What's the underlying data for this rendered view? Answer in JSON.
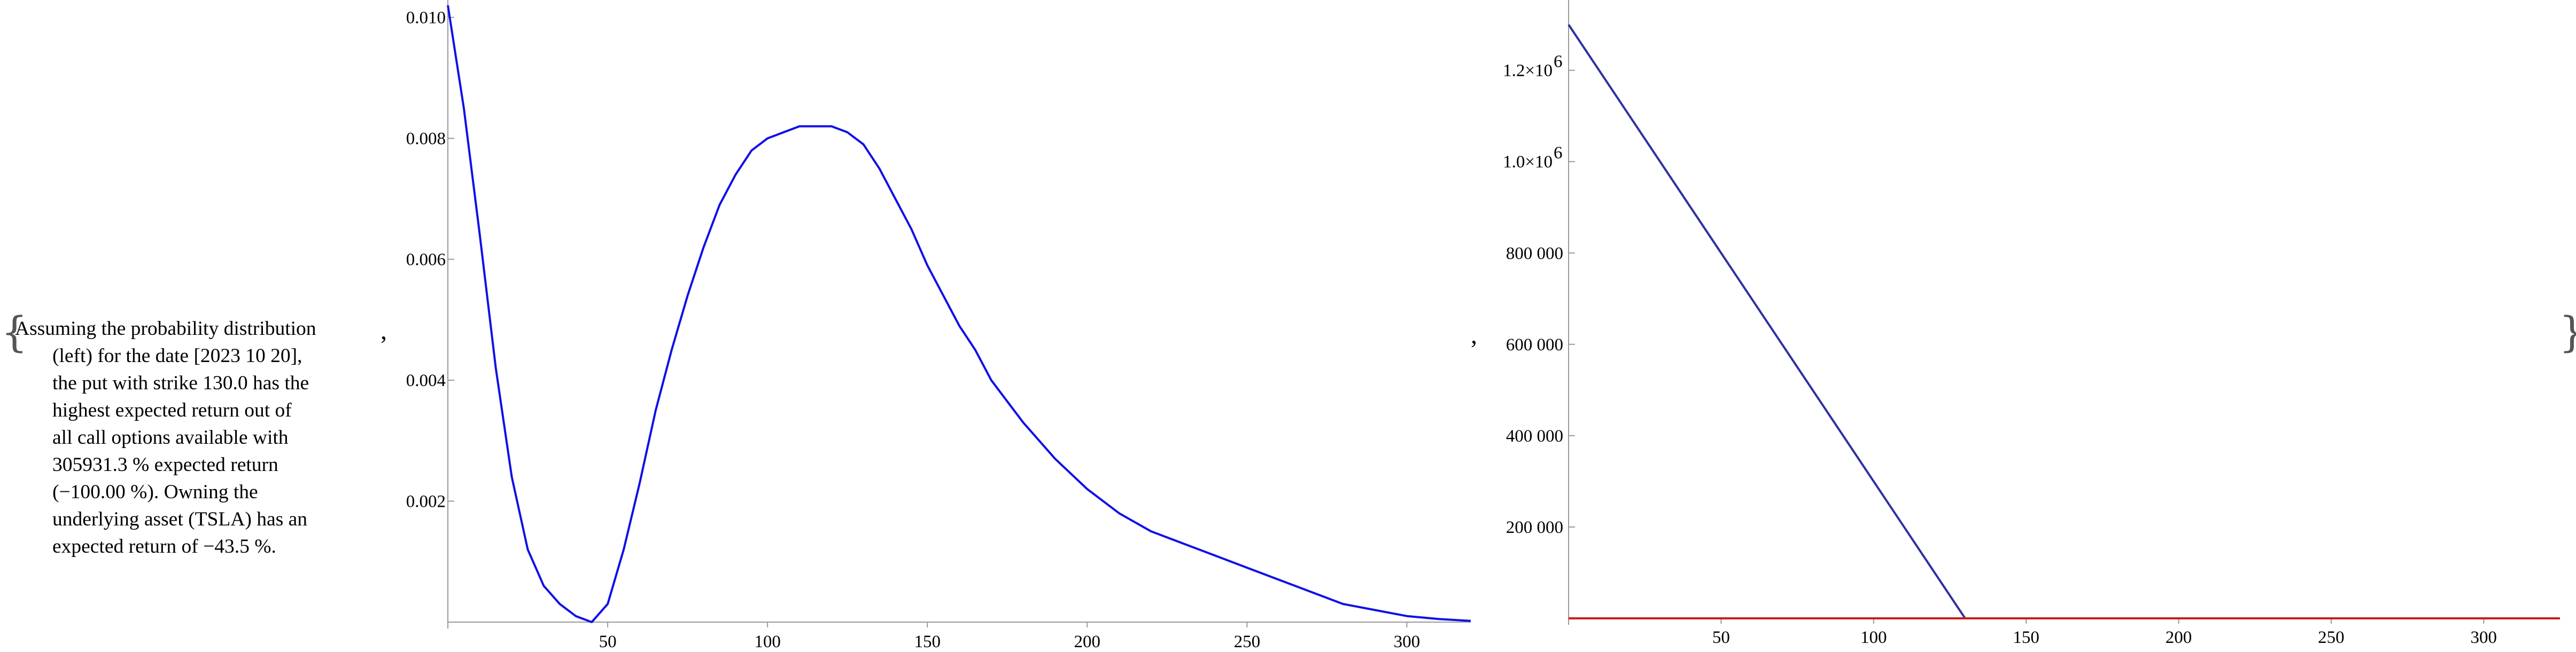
{
  "caption": {
    "lines": [
      "Assuming the probability distribution",
      "(left) for the date [2023 10 20],",
      "the put with strike 130.0 has the",
      "highest expected return out of",
      "all call options available with",
      "305931.3 % expected return",
      "(−100.00 %). Owning the",
      "underlying asset (TSLA) has an",
      "expected return of −43.5 %."
    ]
  },
  "separators": {
    "open": "{",
    "close": "}",
    "comma": ","
  },
  "chart_data": [
    {
      "type": "line",
      "title": "",
      "xlabel": "",
      "ylabel": "",
      "xlim": [
        0,
        320
      ],
      "ylim": [
        0,
        0.0102
      ],
      "x_ticks": [
        50,
        100,
        150,
        200,
        250,
        300
      ],
      "x_tick_labels": [
        "50",
        "100",
        "150",
        "200",
        "250",
        "300"
      ],
      "y_ticks": [
        0.002,
        0.004,
        0.006,
        0.008,
        0.01
      ],
      "y_tick_labels": [
        "0.002",
        "0.004",
        "0.006",
        "0.008",
        "0.010"
      ],
      "grid": false,
      "series": [
        {
          "color": "#1010e8",
          "x": [
            0,
            5,
            10,
            15,
            20,
            25,
            30,
            35,
            40,
            45,
            50,
            55,
            60,
            65,
            70,
            75,
            80,
            85,
            90,
            95,
            100,
            105,
            110,
            115,
            120,
            125,
            130,
            135,
            140,
            145,
            150,
            155,
            160,
            165,
            170,
            180,
            190,
            200,
            210,
            220,
            230,
            240,
            250,
            260,
            270,
            280,
            290,
            300,
            310,
            320
          ],
          "y": [
            0.0102,
            0.0085,
            0.0064,
            0.0042,
            0.0024,
            0.0012,
            0.0006,
            0.0003,
            0.0001,
            0.0,
            0.0003,
            0.0012,
            0.0023,
            0.0035,
            0.0045,
            0.0054,
            0.0062,
            0.0069,
            0.0074,
            0.0078,
            0.008,
            0.0081,
            0.0082,
            0.0082,
            0.0082,
            0.0081,
            0.0079,
            0.0075,
            0.007,
            0.0065,
            0.0059,
            0.0054,
            0.0049,
            0.0045,
            0.004,
            0.0033,
            0.0027,
            0.0022,
            0.0018,
            0.0015,
            0.0013,
            0.0011,
            0.0009,
            0.0007,
            0.0005,
            0.0003,
            0.0002,
            0.0001,
            5e-05,
            2e-05
          ]
        }
      ]
    },
    {
      "type": "line",
      "title": "",
      "xlabel": "",
      "ylabel": "",
      "xlim": [
        0,
        325
      ],
      "ylim": [
        0,
        1320000
      ],
      "x_ticks": [
        50,
        100,
        150,
        200,
        250,
        300
      ],
      "x_tick_labels": [
        "50",
        "100",
        "150",
        "200",
        "250",
        "300"
      ],
      "y_ticks": [
        200000,
        400000,
        600000,
        800000,
        1000000,
        1200000
      ],
      "y_tick_labels": [
        "200 000",
        "400 000",
        "600 000",
        "800 000",
        "1.0×10",
        "1.2×10"
      ],
      "y_tick_exponents": [
        "",
        "",
        "",
        "",
        "6",
        "6"
      ],
      "grid": false,
      "series": [
        {
          "color": "#3030a0",
          "x": [
            0,
            130,
            325
          ],
          "y": [
            1300000,
            0,
            0
          ]
        },
        {
          "color": "#c81e1e",
          "x": [
            0,
            325
          ],
          "y": [
            0,
            0
          ]
        }
      ]
    }
  ]
}
